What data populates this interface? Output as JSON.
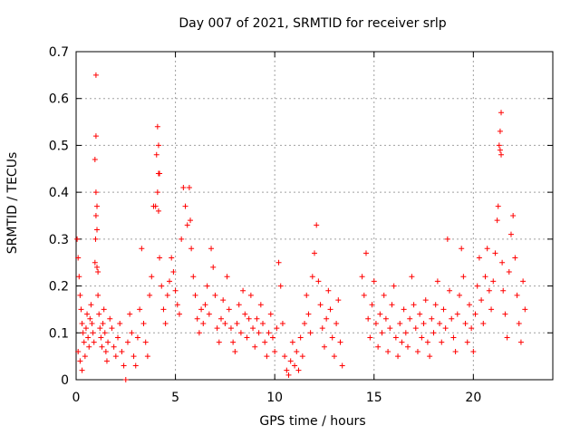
{
  "chart_data": {
    "type": "scatter",
    "title": "Day 007 of 2021, SRMTID for receiver srlp",
    "xlabel": "GPS time / hours",
    "ylabel": "SRMTID / TECUs",
    "xlim": [
      0,
      24
    ],
    "ylim": [
      0,
      0.7
    ],
    "xticks": [
      0,
      5,
      10,
      15,
      20
    ],
    "yticks": [
      0,
      0.1,
      0.2,
      0.3,
      0.4,
      0.5,
      0.6,
      0.7
    ],
    "xtick_labels": [
      "0",
      "5",
      "10",
      "15",
      "20"
    ],
    "ytick_labels": [
      "0",
      "0.1",
      "0.2",
      "0.3",
      "0.4",
      "0.5",
      "0.6",
      "0.7"
    ],
    "grid": true,
    "marker": "+",
    "color": "#ff0000",
    "series": [
      {
        "name": "SRMTID",
        "points": [
          [
            0.05,
            0.3
          ],
          [
            0.1,
            0.26
          ],
          [
            0.15,
            0.22
          ],
          [
            0.2,
            0.18
          ],
          [
            0.25,
            0.15
          ],
          [
            0.3,
            0.12
          ],
          [
            0.35,
            0.1
          ],
          [
            0.4,
            0.08
          ],
          [
            0.1,
            0.06
          ],
          [
            0.2,
            0.04
          ],
          [
            0.3,
            0.02
          ],
          [
            0.45,
            0.05
          ],
          [
            0.5,
            0.11
          ],
          [
            0.55,
            0.14
          ],
          [
            0.6,
            0.09
          ],
          [
            0.65,
            0.07
          ],
          [
            0.7,
            0.13
          ],
          [
            0.75,
            0.16
          ],
          [
            0.8,
            0.12
          ],
          [
            0.85,
            0.1
          ],
          [
            0.9,
            0.08
          ],
          [
            0.95,
            0.25
          ],
          [
            1.0,
            0.65
          ],
          [
            1.0,
            0.52
          ],
          [
            0.95,
            0.47
          ],
          [
            1.0,
            0.4
          ],
          [
            1.05,
            0.37
          ],
          [
            1.0,
            0.35
          ],
          [
            1.05,
            0.32
          ],
          [
            0.98,
            0.3
          ],
          [
            1.05,
            0.24
          ],
          [
            1.1,
            0.23
          ],
          [
            1.1,
            0.18
          ],
          [
            1.15,
            0.14
          ],
          [
            1.2,
            0.11
          ],
          [
            1.25,
            0.09
          ],
          [
            1.3,
            0.07
          ],
          [
            1.35,
            0.12
          ],
          [
            1.4,
            0.15
          ],
          [
            1.45,
            0.1
          ],
          [
            1.5,
            0.06
          ],
          [
            1.55,
            0.04
          ],
          [
            1.6,
            0.08
          ],
          [
            1.7,
            0.13
          ],
          [
            1.8,
            0.11
          ],
          [
            1.9,
            0.07
          ],
          [
            2.0,
            0.05
          ],
          [
            2.1,
            0.09
          ],
          [
            2.2,
            0.12
          ],
          [
            2.3,
            0.06
          ],
          [
            2.4,
            0.03
          ],
          [
            2.5,
            0.0
          ],
          [
            2.6,
            0.08
          ],
          [
            2.7,
            0.14
          ],
          [
            2.8,
            0.1
          ],
          [
            2.9,
            0.05
          ],
          [
            3.0,
            0.03
          ],
          [
            3.1,
            0.09
          ],
          [
            3.2,
            0.15
          ],
          [
            3.3,
            0.28
          ],
          [
            3.4,
            0.12
          ],
          [
            3.5,
            0.08
          ],
          [
            3.6,
            0.05
          ],
          [
            3.7,
            0.18
          ],
          [
            3.8,
            0.22
          ],
          [
            3.9,
            0.37
          ],
          [
            4.0,
            0.37
          ],
          [
            4.05,
            0.48
          ],
          [
            4.1,
            0.54
          ],
          [
            4.15,
            0.5
          ],
          [
            4.15,
            0.44
          ],
          [
            4.2,
            0.44
          ],
          [
            4.1,
            0.4
          ],
          [
            4.15,
            0.36
          ],
          [
            4.2,
            0.26
          ],
          [
            4.3,
            0.2
          ],
          [
            4.4,
            0.15
          ],
          [
            4.5,
            0.12
          ],
          [
            4.6,
            0.18
          ],
          [
            4.7,
            0.21
          ],
          [
            4.8,
            0.26
          ],
          [
            4.9,
            0.23
          ],
          [
            5.0,
            0.19
          ],
          [
            5.1,
            0.16
          ],
          [
            5.2,
            0.14
          ],
          [
            5.3,
            0.3
          ],
          [
            5.4,
            0.41
          ],
          [
            5.5,
            0.37
          ],
          [
            5.6,
            0.33
          ],
          [
            5.7,
            0.41
          ],
          [
            5.75,
            0.34
          ],
          [
            5.8,
            0.28
          ],
          [
            5.9,
            0.22
          ],
          [
            6.0,
            0.18
          ],
          [
            6.1,
            0.13
          ],
          [
            6.2,
            0.1
          ],
          [
            6.3,
            0.15
          ],
          [
            6.4,
            0.12
          ],
          [
            6.5,
            0.16
          ],
          [
            6.6,
            0.2
          ],
          [
            6.7,
            0.14
          ],
          [
            6.8,
            0.28
          ],
          [
            6.9,
            0.24
          ],
          [
            7.0,
            0.18
          ],
          [
            7.1,
            0.11
          ],
          [
            7.2,
            0.08
          ],
          [
            7.3,
            0.13
          ],
          [
            7.4,
            0.17
          ],
          [
            7.5,
            0.12
          ],
          [
            7.6,
            0.22
          ],
          [
            7.7,
            0.15
          ],
          [
            7.8,
            0.11
          ],
          [
            7.9,
            0.08
          ],
          [
            8.0,
            0.06
          ],
          [
            8.1,
            0.12
          ],
          [
            8.2,
            0.16
          ],
          [
            8.3,
            0.1
          ],
          [
            8.4,
            0.19
          ],
          [
            8.5,
            0.14
          ],
          [
            8.6,
            0.09
          ],
          [
            8.7,
            0.13
          ],
          [
            8.8,
            0.18
          ],
          [
            8.9,
            0.11
          ],
          [
            9.0,
            0.07
          ],
          [
            9.1,
            0.13
          ],
          [
            9.2,
            0.1
          ],
          [
            9.3,
            0.16
          ],
          [
            9.4,
            0.12
          ],
          [
            9.5,
            0.08
          ],
          [
            9.6,
            0.05
          ],
          [
            9.7,
            0.1
          ],
          [
            9.8,
            0.14
          ],
          [
            9.9,
            0.09
          ],
          [
            10.0,
            0.06
          ],
          [
            10.1,
            0.11
          ],
          [
            10.2,
            0.25
          ],
          [
            10.3,
            0.2
          ],
          [
            10.4,
            0.12
          ],
          [
            10.5,
            0.05
          ],
          [
            10.6,
            0.02
          ],
          [
            10.7,
            0.01
          ],
          [
            10.8,
            0.04
          ],
          [
            10.9,
            0.08
          ],
          [
            11.0,
            0.03
          ],
          [
            11.1,
            0.06
          ],
          [
            11.2,
            0.02
          ],
          [
            11.3,
            0.09
          ],
          [
            11.4,
            0.05
          ],
          [
            11.5,
            0.12
          ],
          [
            11.6,
            0.18
          ],
          [
            11.7,
            0.14
          ],
          [
            11.8,
            0.1
          ],
          [
            11.9,
            0.22
          ],
          [
            12.0,
            0.27
          ],
          [
            12.1,
            0.33
          ],
          [
            12.2,
            0.21
          ],
          [
            12.3,
            0.16
          ],
          [
            12.4,
            0.11
          ],
          [
            12.5,
            0.07
          ],
          [
            12.6,
            0.13
          ],
          [
            12.7,
            0.19
          ],
          [
            12.8,
            0.15
          ],
          [
            12.9,
            0.09
          ],
          [
            13.0,
            0.05
          ],
          [
            13.1,
            0.12
          ],
          [
            13.2,
            0.17
          ],
          [
            13.3,
            0.08
          ],
          [
            13.4,
            0.03
          ],
          [
            14.4,
            0.22
          ],
          [
            14.5,
            0.18
          ],
          [
            14.6,
            0.27
          ],
          [
            14.7,
            0.13
          ],
          [
            14.8,
            0.09
          ],
          [
            14.9,
            0.16
          ],
          [
            15.0,
            0.21
          ],
          [
            15.1,
            0.12
          ],
          [
            15.2,
            0.07
          ],
          [
            15.3,
            0.14
          ],
          [
            15.4,
            0.1
          ],
          [
            15.5,
            0.18
          ],
          [
            15.6,
            0.13
          ],
          [
            15.7,
            0.06
          ],
          [
            15.8,
            0.11
          ],
          [
            15.9,
            0.16
          ],
          [
            16.0,
            0.2
          ],
          [
            16.1,
            0.09
          ],
          [
            16.2,
            0.05
          ],
          [
            16.3,
            0.12
          ],
          [
            16.4,
            0.08
          ],
          [
            16.5,
            0.15
          ],
          [
            16.6,
            0.1
          ],
          [
            16.7,
            0.07
          ],
          [
            16.8,
            0.13
          ],
          [
            16.9,
            0.22
          ],
          [
            17.0,
            0.16
          ],
          [
            17.1,
            0.11
          ],
          [
            17.2,
            0.06
          ],
          [
            17.3,
            0.14
          ],
          [
            17.4,
            0.09
          ],
          [
            17.5,
            0.12
          ],
          [
            17.6,
            0.17
          ],
          [
            17.7,
            0.08
          ],
          [
            17.8,
            0.05
          ],
          [
            17.9,
            0.13
          ],
          [
            18.0,
            0.1
          ],
          [
            18.1,
            0.16
          ],
          [
            18.2,
            0.21
          ],
          [
            18.3,
            0.12
          ],
          [
            18.4,
            0.08
          ],
          [
            18.5,
            0.15
          ],
          [
            18.6,
            0.11
          ],
          [
            18.7,
            0.3
          ],
          [
            18.8,
            0.19
          ],
          [
            18.9,
            0.13
          ],
          [
            19.0,
            0.09
          ],
          [
            19.1,
            0.06
          ],
          [
            19.2,
            0.14
          ],
          [
            19.3,
            0.18
          ],
          [
            19.4,
            0.28
          ],
          [
            19.5,
            0.22
          ],
          [
            19.6,
            0.12
          ],
          [
            19.7,
            0.08
          ],
          [
            19.8,
            0.16
          ],
          [
            19.9,
            0.11
          ],
          [
            20.0,
            0.06
          ],
          [
            20.1,
            0.14
          ],
          [
            20.2,
            0.2
          ],
          [
            20.3,
            0.26
          ],
          [
            20.4,
            0.17
          ],
          [
            20.5,
            0.12
          ],
          [
            20.6,
            0.22
          ],
          [
            20.7,
            0.28
          ],
          [
            20.8,
            0.19
          ],
          [
            20.9,
            0.15
          ],
          [
            21.0,
            0.21
          ],
          [
            21.1,
            0.27
          ],
          [
            21.2,
            0.34
          ],
          [
            21.25,
            0.37
          ],
          [
            21.3,
            0.5
          ],
          [
            21.35,
            0.53
          ],
          [
            21.4,
            0.57
          ],
          [
            21.4,
            0.48
          ],
          [
            21.35,
            0.49
          ],
          [
            21.45,
            0.25
          ],
          [
            21.5,
            0.19
          ],
          [
            21.6,
            0.14
          ],
          [
            21.7,
            0.09
          ],
          [
            21.8,
            0.23
          ],
          [
            21.9,
            0.31
          ],
          [
            22.0,
            0.35
          ],
          [
            22.1,
            0.26
          ],
          [
            22.2,
            0.18
          ],
          [
            22.3,
            0.12
          ],
          [
            22.4,
            0.08
          ],
          [
            22.5,
            0.21
          ],
          [
            22.6,
            0.15
          ]
        ]
      }
    ]
  }
}
